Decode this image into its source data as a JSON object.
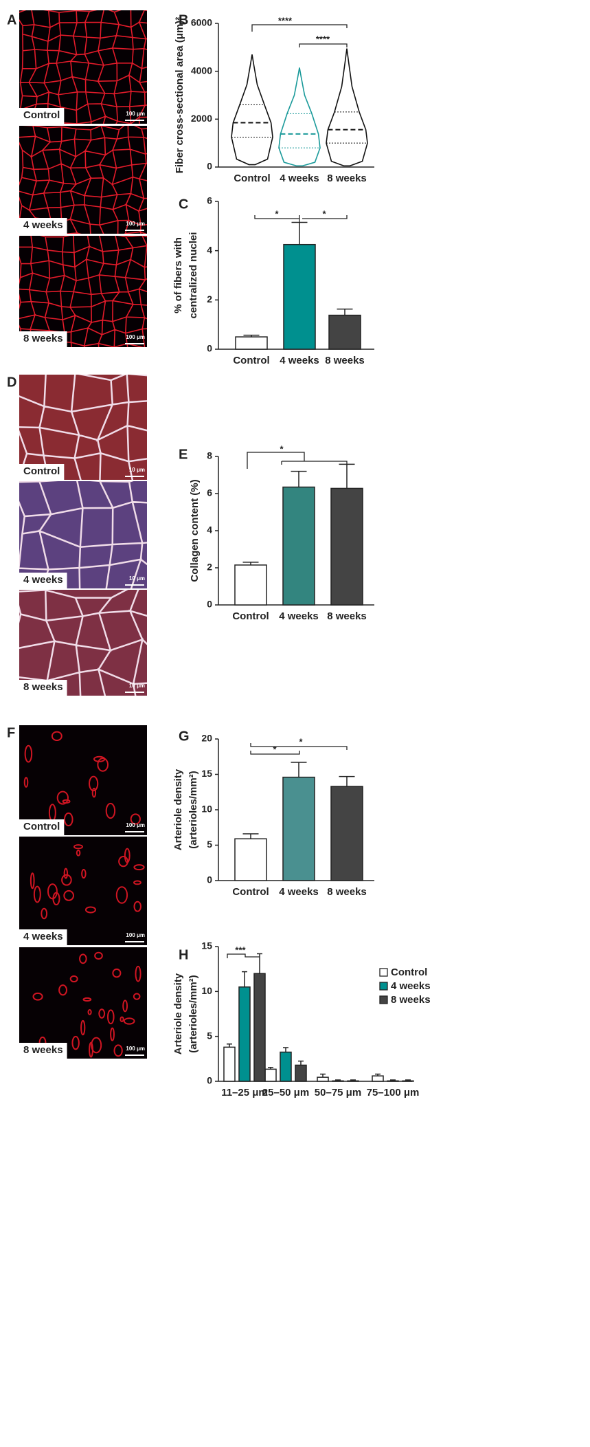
{
  "micrographs": [
    {
      "panel_label": "A",
      "images": [
        {
          "label": "Control",
          "scale": "100 μm"
        },
        {
          "label": "4 weeks",
          "scale": "100 μm"
        },
        {
          "label": "8 weeks",
          "scale": "100 μm"
        }
      ]
    },
    {
      "panel_label": "D",
      "images": [
        {
          "label": "Control",
          "scale": "10 μm"
        },
        {
          "label": "4 weeks",
          "scale": "10 μm"
        },
        {
          "label": "8 weeks",
          "scale": "10 μm"
        }
      ]
    },
    {
      "panel_label": "F",
      "images": [
        {
          "label": "Control",
          "scale": "100 μm"
        },
        {
          "label": "4 weeks",
          "scale": "100 μm"
        },
        {
          "label": "8 weeks",
          "scale": "100 μm"
        }
      ]
    }
  ],
  "chart_data": [
    {
      "type": "violin",
      "panel_label": "B",
      "y_label": [
        "Fiber cross-sectional area (μm)²"
      ],
      "categories": [
        "Control",
        "4 weeks",
        "8 weeks"
      ],
      "min": [
        100,
        50,
        50
      ],
      "q1": [
        1250,
        800,
        1000
      ],
      "median": [
        1850,
        1380,
        1560
      ],
      "q3": [
        2600,
        2230,
        2300
      ],
      "max": [
        4700,
        4150,
        4950
      ],
      "colors": [
        "#111111",
        "#1a9a9a",
        "#111111"
      ],
      "ylim": [
        0,
        6000
      ],
      "yticks": [
        0,
        2000,
        4000,
        6000
      ],
      "annotations": [
        "****",
        "****"
      ]
    },
    {
      "type": "bar",
      "panel_label": "C",
      "y_label": [
        "% of fibers with",
        "centralized nuclei"
      ],
      "categories": [
        "Control",
        "4 weeks",
        "8 weeks"
      ],
      "values": [
        0.5,
        4.25,
        1.38
      ],
      "errors": [
        0.07,
        0.9,
        0.25
      ],
      "colors": [
        "#ffffff",
        "#00908f",
        "#444444"
      ],
      "ylim": [
        0,
        6
      ],
      "yticks": [
        0,
        2,
        4,
        6
      ],
      "annotations": [
        "*",
        "*"
      ]
    },
    {
      "type": "bar",
      "panel_label": "E",
      "y_label": [
        "Collagen content (%)"
      ],
      "categories": [
        "Control",
        "4 weeks",
        "8 weeks"
      ],
      "values": [
        2.15,
        6.35,
        6.28
      ],
      "errors": [
        0.15,
        0.85,
        1.3
      ],
      "colors": [
        "#ffffff",
        "#33857f",
        "#444444"
      ],
      "ylim": [
        0,
        8
      ],
      "yticks": [
        0,
        2,
        4,
        6,
        8
      ],
      "annotations": [
        "*"
      ]
    },
    {
      "type": "bar",
      "panel_label": "G",
      "y_label": [
        "Arteriole density",
        "(arterioles/mm²)"
      ],
      "categories": [
        "Control",
        "4 weeks",
        "8 weeks"
      ],
      "values": [
        5.9,
        14.6,
        13.3
      ],
      "errors": [
        0.7,
        2.1,
        1.4
      ],
      "colors": [
        "#ffffff",
        "#4a9090",
        "#444444"
      ],
      "ylim": [
        0,
        20
      ],
      "yticks": [
        0,
        5,
        10,
        15,
        20
      ],
      "annotations": [
        "*",
        "*"
      ]
    },
    {
      "type": "grouped_bar",
      "panel_label": "H",
      "y_label": [
        "Arteriole density",
        "(arterioles/mm²)"
      ],
      "categories": [
        "11–25 μm",
        "25–50 μm",
        "50–75 μm",
        "75–100 μm"
      ],
      "series": [
        {
          "name": "Control",
          "color": "#ffffff",
          "values": [
            3.8,
            1.35,
            0.45,
            0.6
          ],
          "errors": [
            0.35,
            0.2,
            0.35,
            0.2
          ]
        },
        {
          "name": "4 weeks",
          "color": "#00908f",
          "values": [
            10.5,
            3.25,
            0.05,
            0.05
          ],
          "errors": [
            1.7,
            0.5,
            0.1,
            0.1
          ]
        },
        {
          "name": "8 weeks",
          "color": "#444444",
          "values": [
            12,
            1.8,
            0.05,
            0.05
          ],
          "errors": [
            2.2,
            0.45,
            0.1,
            0.1
          ]
        }
      ],
      "ylim": [
        0,
        15
      ],
      "yticks": [
        0,
        5,
        10,
        15
      ],
      "annotations": [
        "***"
      ]
    }
  ]
}
